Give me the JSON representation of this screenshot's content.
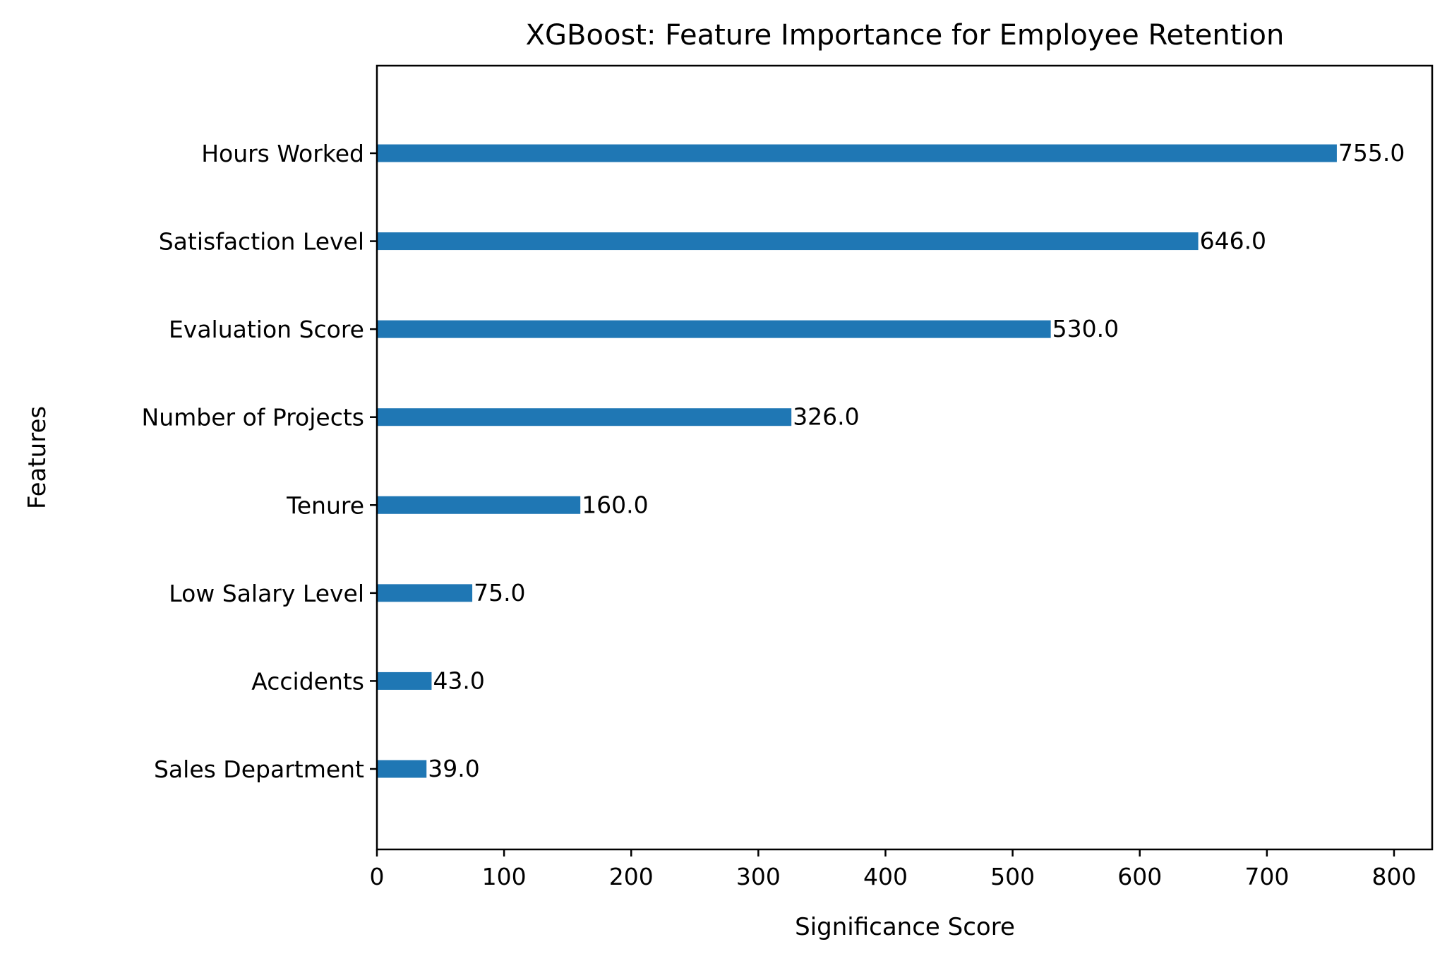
{
  "chart_data": {
    "type": "bar",
    "orientation": "horizontal",
    "title": "XGBoost: Feature Importance for Employee Retention",
    "xlabel": "Significance Score",
    "ylabel": "Features",
    "categories": [
      "Hours Worked",
      "Satisfaction Level",
      "Evaluation Score",
      "Number of Projects",
      "Tenure",
      "Low Salary Level",
      "Accidents",
      "Sales Department"
    ],
    "values": [
      755.0,
      646.0,
      530.0,
      326.0,
      160.0,
      75.0,
      43.0,
      39.0
    ],
    "data_labels": [
      "755.0",
      "646.0",
      "530.0",
      "326.0",
      "160.0",
      "75.0",
      "43.0",
      "39.0"
    ],
    "xticks": [
      "0",
      "100",
      "200",
      "300",
      "400",
      "500",
      "600",
      "700",
      "800"
    ],
    "xlim": [
      0,
      830
    ],
    "grid": false,
    "bar_color": "#1f77b4"
  }
}
